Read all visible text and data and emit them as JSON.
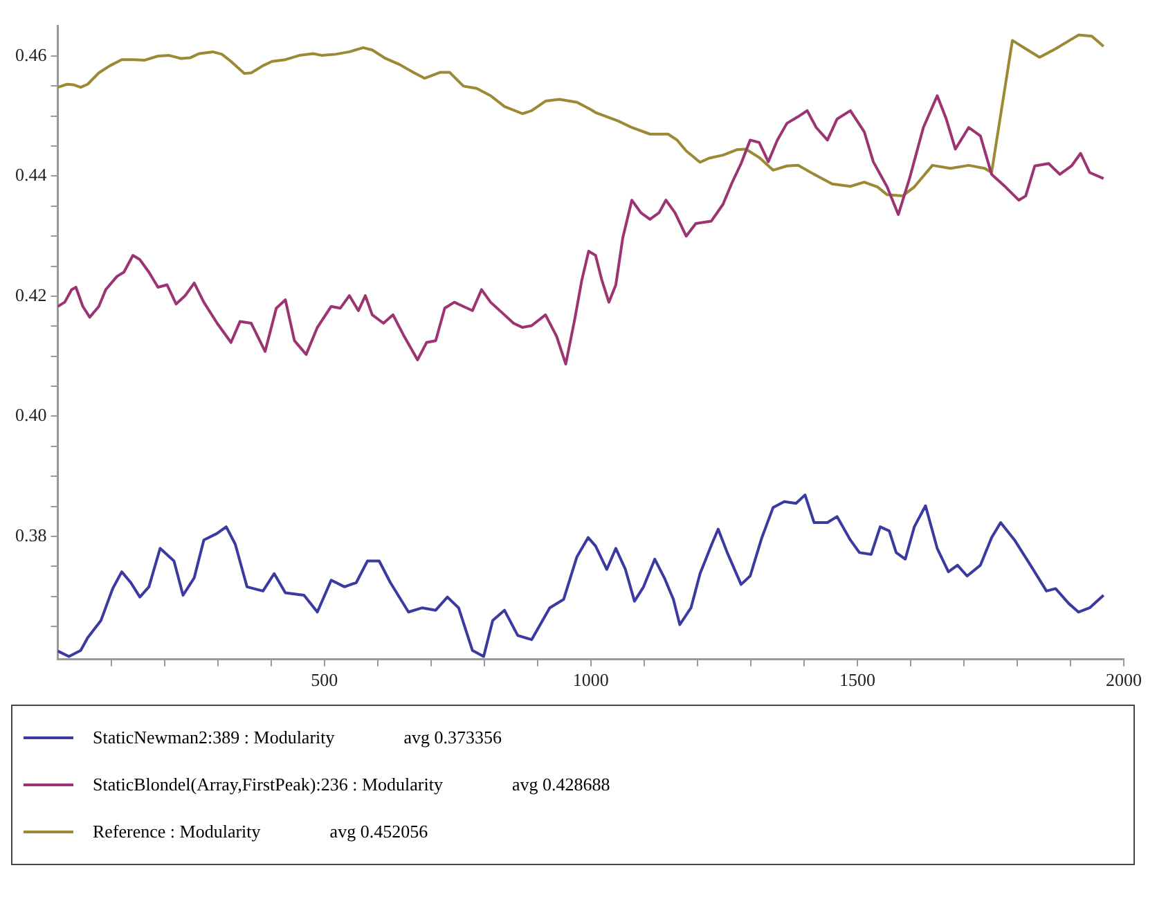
{
  "chart_data": {
    "type": "line",
    "xlim": [
      0,
      2000
    ],
    "ylim": [
      0.3595,
      0.465
    ],
    "xticks": [
      {
        "value": 100,
        "label": null
      },
      {
        "value": 200,
        "label": null
      },
      {
        "value": 300,
        "label": null
      },
      {
        "value": 400,
        "label": null
      },
      500,
      {
        "value": 600,
        "label": null
      },
      {
        "value": 700,
        "label": null
      },
      {
        "value": 800,
        "label": null
      },
      {
        "value": 900,
        "label": null
      },
      1000,
      {
        "value": 1100,
        "label": null
      },
      {
        "value": 1200,
        "label": null
      },
      {
        "value": 1300,
        "label": null
      },
      {
        "value": 1400,
        "label": null
      },
      1500,
      {
        "value": 1600,
        "label": null
      },
      {
        "value": 1700,
        "label": null
      },
      {
        "value": 1800,
        "label": null
      },
      {
        "value": 1900,
        "label": null
      },
      2000
    ],
    "yticks": [
      {
        "value": 0.365,
        "label": null
      },
      {
        "value": 0.37,
        "label": null
      },
      {
        "value": 0.375,
        "label": null
      },
      0.38,
      {
        "value": 0.385,
        "label": null
      },
      {
        "value": 0.39,
        "label": null
      },
      {
        "value": 0.395,
        "label": null
      },
      {
        "value": 0.4,
        "label": "0.40"
      },
      {
        "value": 0.405,
        "label": null
      },
      {
        "value": 0.41,
        "label": null
      },
      {
        "value": 0.415,
        "label": null
      },
      0.42,
      {
        "value": 0.425,
        "label": null
      },
      {
        "value": 0.43,
        "label": null
      },
      {
        "value": 0.435,
        "label": null
      },
      0.44,
      {
        "value": 0.445,
        "label": null
      },
      {
        "value": 0.45,
        "label": null
      },
      {
        "value": 0.455,
        "label": null
      },
      0.46
    ],
    "marker": "none",
    "line_style": "solid",
    "legend": "bottom",
    "annotations": [
      "avg 0.373356",
      "avg 0.428688",
      "avg 0.452056"
    ],
    "series": [
      {
        "name": "StaticNewman2:389 : Modularity",
        "color": "#3a3aa0",
        "x": [
          0,
          21,
          43,
          56,
          68,
          81,
          103,
          120,
          137,
          154,
          171,
          192,
          218,
          235,
          256,
          274,
          299,
          316,
          333,
          355,
          385,
          406,
          427,
          462,
          487,
          513,
          538,
          560,
          581,
          603,
          624,
          658,
          684,
          709,
          731,
          752,
          778,
          799,
          816,
          838,
          863,
          889,
          923,
          949,
          974,
          995,
          1009,
          1030,
          1047,
          1065,
          1082,
          1099,
          1120,
          1138,
          1155,
          1167,
          1188,
          1205,
          1227,
          1239,
          1256,
          1282,
          1299,
          1321,
          1342,
          1363,
          1385,
          1402,
          1419,
          1444,
          1462,
          1487,
          1504,
          1526,
          1543,
          1560,
          1573,
          1590,
          1607,
          1628,
          1650,
          1671,
          1688,
          1706,
          1731,
          1752,
          1769,
          1795,
          1825,
          1855,
          1872,
          1897,
          1915,
          1936,
          1962
        ],
        "values": [
          0.3609,
          0.36,
          0.361,
          0.3631,
          0.3645,
          0.366,
          0.3713,
          0.3741,
          0.3723,
          0.3699,
          0.3716,
          0.378,
          0.3759,
          0.3702,
          0.3731,
          0.3794,
          0.3805,
          0.3816,
          0.3787,
          0.3716,
          0.3709,
          0.3738,
          0.3706,
          0.3702,
          0.3674,
          0.3727,
          0.3716,
          0.3723,
          0.3759,
          0.3759,
          0.3723,
          0.3674,
          0.3681,
          0.3677,
          0.3699,
          0.3681,
          0.361,
          0.36,
          0.366,
          0.3677,
          0.3635,
          0.3628,
          0.3681,
          0.3695,
          0.3766,
          0.3798,
          0.3784,
          0.3745,
          0.378,
          0.3745,
          0.3692,
          0.3716,
          0.3762,
          0.3731,
          0.3695,
          0.3653,
          0.3681,
          0.3738,
          0.3787,
          0.3812,
          0.3773,
          0.372,
          0.3734,
          0.3798,
          0.3848,
          0.3858,
          0.3855,
          0.3869,
          0.3823,
          0.3823,
          0.3833,
          0.3794,
          0.3773,
          0.377,
          0.3816,
          0.3809,
          0.3773,
          0.3762,
          0.3816,
          0.3851,
          0.378,
          0.3741,
          0.3752,
          0.3734,
          0.3752,
          0.3798,
          0.3823,
          0.3794,
          0.3752,
          0.3709,
          0.3713,
          0.3688,
          0.3674,
          0.3681,
          0.3702
        ]
      },
      {
        "name": "StaticBlondel(Array,FirstPeak):236 : Modularity",
        "color": "#9c3472",
        "x": [
          0,
          13,
          26,
          34,
          47,
          60,
          77,
          90,
          111,
          124,
          141,
          154,
          171,
          188,
          205,
          222,
          239,
          256,
          274,
          299,
          325,
          342,
          363,
          389,
          410,
          427,
          444,
          466,
          487,
          513,
          530,
          547,
          564,
          577,
          590,
          611,
          629,
          650,
          675,
          692,
          709,
          726,
          744,
          761,
          778,
          795,
          812,
          838,
          855,
          872,
          889,
          915,
          936,
          953,
          970,
          983,
          996,
          1009,
          1021,
          1034,
          1047,
          1060,
          1077,
          1094,
          1111,
          1128,
          1141,
          1158,
          1179,
          1197,
          1226,
          1248,
          1265,
          1282,
          1299,
          1316,
          1333,
          1350,
          1368,
          1389,
          1406,
          1423,
          1444,
          1462,
          1487,
          1513,
          1530,
          1556,
          1577,
          1598,
          1624,
          1650,
          1667,
          1684,
          1709,
          1731,
          1752,
          1778,
          1803,
          1816,
          1833,
          1859,
          1880,
          1902,
          1919,
          1936,
          1962
        ],
        "values": [
          0.4183,
          0.419,
          0.4211,
          0.4215,
          0.4183,
          0.4165,
          0.4183,
          0.4211,
          0.4233,
          0.424,
          0.4268,
          0.4261,
          0.424,
          0.4215,
          0.4219,
          0.4187,
          0.4201,
          0.4222,
          0.419,
          0.4155,
          0.4123,
          0.4158,
          0.4155,
          0.4108,
          0.418,
          0.4194,
          0.4126,
          0.4103,
          0.4148,
          0.4183,
          0.418,
          0.4201,
          0.4176,
          0.4201,
          0.4169,
          0.4155,
          0.4169,
          0.4133,
          0.4094,
          0.4123,
          0.4126,
          0.418,
          0.419,
          0.4183,
          0.4176,
          0.4211,
          0.419,
          0.4169,
          0.4155,
          0.4148,
          0.4151,
          0.4169,
          0.4133,
          0.4087,
          0.4162,
          0.4226,
          0.4275,
          0.4268,
          0.4226,
          0.419,
          0.4219,
          0.4297,
          0.436,
          0.4339,
          0.4328,
          0.4339,
          0.436,
          0.4339,
          0.43,
          0.4321,
          0.4325,
          0.4353,
          0.4389,
          0.4421,
          0.446,
          0.4456,
          0.4424,
          0.446,
          0.4488,
          0.4499,
          0.4509,
          0.4481,
          0.446,
          0.4495,
          0.4509,
          0.4474,
          0.4424,
          0.4382,
          0.4336,
          0.4396,
          0.4481,
          0.4534,
          0.4495,
          0.4445,
          0.4481,
          0.4467,
          0.4403,
          0.4382,
          0.436,
          0.4367,
          0.4417,
          0.4421,
          0.4403,
          0.4417,
          0.4438,
          0.4406,
          0.4396
        ]
      },
      {
        "name": "Reference : Modularity",
        "color": "#9a8a36",
        "x": [
          0,
          17,
          30,
          43,
          56,
          77,
          98,
          120,
          145,
          162,
          188,
          209,
          231,
          248,
          265,
          291,
          308,
          325,
          350,
          363,
          385,
          402,
          427,
          453,
          479,
          496,
          521,
          547,
          573,
          590,
          615,
          641,
          667,
          688,
          718,
          735,
          761,
          786,
          812,
          838,
          872,
          889,
          915,
          941,
          974,
          1000,
          1009,
          1051,
          1077,
          1111,
          1145,
          1162,
          1179,
          1205,
          1222,
          1248,
          1274,
          1291,
          1316,
          1342,
          1368,
          1389,
          1419,
          1453,
          1487,
          1513,
          1538,
          1556,
          1585,
          1607,
          1641,
          1675,
          1709,
          1739,
          1752,
          1791,
          1816,
          1842,
          1872,
          1915,
          1940,
          1962
        ],
        "values": [
          0.4548,
          0.4553,
          0.4552,
          0.4548,
          0.4553,
          0.4572,
          0.4584,
          0.4594,
          0.4594,
          0.4593,
          0.46,
          0.4601,
          0.4596,
          0.4597,
          0.4604,
          0.4607,
          0.4603,
          0.4591,
          0.4571,
          0.4572,
          0.4584,
          0.4591,
          0.4594,
          0.4601,
          0.4604,
          0.4601,
          0.4603,
          0.4607,
          0.4614,
          0.461,
          0.4596,
          0.4586,
          0.4573,
          0.4563,
          0.4573,
          0.4573,
          0.455,
          0.4546,
          0.4534,
          0.4516,
          0.4504,
          0.4509,
          0.4525,
          0.4528,
          0.4523,
          0.4511,
          0.4506,
          0.4492,
          0.4481,
          0.447,
          0.447,
          0.446,
          0.4442,
          0.4423,
          0.443,
          0.4435,
          0.4444,
          0.4445,
          0.4431,
          0.441,
          0.4417,
          0.4418,
          0.4403,
          0.4387,
          0.4383,
          0.439,
          0.4382,
          0.4369,
          0.4367,
          0.4382,
          0.4418,
          0.4413,
          0.4418,
          0.4413,
          0.4406,
          0.4626,
          0.4612,
          0.4598,
          0.4612,
          0.4635,
          0.4633,
          0.4616
        ]
      }
    ]
  }
}
